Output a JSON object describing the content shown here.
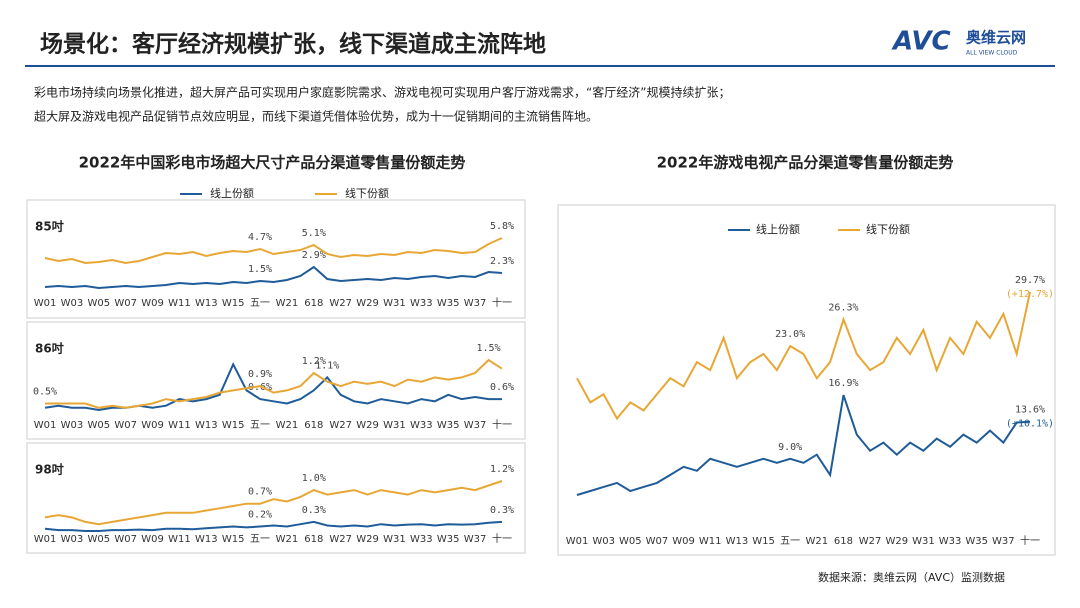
{
  "header": {
    "title": "场景化：客厅经济规模扩张，线下渠道成主流阵地",
    "logo": "AVC",
    "logo_name": "奥维云网",
    "logo_sub": "ALL VIEW CLOUD"
  },
  "paragraph": [
    "彩电市场持续向场景化推进，超大屏产品可实现用户家庭影院需求、游戏电视可实现用户客厅游戏需求，“客厅经济”规模持续扩张；",
    "超大屏及游戏电视产品促销节点效应明显，而线下渠道凭借体验优势，成为十一促销期间的主流销售阵地。"
  ],
  "source": "数据来源：奥维云网（AVC）监测数据",
  "chart_data": [
    {
      "type": "line",
      "title": "2022年中国彩电市场超大尺寸产品分渠道零售量份额走势",
      "legend": [
        {
          "name": "线上份额",
          "color": "#1f5c99"
        },
        {
          "name": "线下份额",
          "color": "#e8a735"
        }
      ],
      "categories": [
        "W01",
        null,
        "W03",
        null,
        "W05",
        null,
        "W07",
        null,
        "W09",
        null,
        "W11",
        null,
        "W13",
        null,
        "W15",
        null,
        "五一",
        null,
        "W21",
        null,
        "618",
        null,
        "W27",
        null,
        "W29",
        null,
        "W31",
        null,
        "W33",
        null,
        "W35",
        null,
        "W37",
        null,
        "十一"
      ],
      "panels": [
        {
          "label": "85吋",
          "series": [
            {
              "values": [
                0.9,
                1.0,
                0.9,
                1.0,
                0.8,
                0.9,
                1.0,
                0.9,
                1.0,
                1.1,
                1.3,
                1.2,
                1.3,
                1.2,
                1.4,
                1.3,
                1.5,
                1.4,
                1.6,
                2.0,
                2.9,
                1.7,
                1.5,
                1.6,
                1.7,
                1.6,
                1.8,
                1.7,
                1.9,
                2.0,
                1.8,
                2.0,
                1.9,
                2.4,
                2.3
              ],
              "value_labels": [
                null,
                null,
                null,
                null,
                null,
                null,
                null,
                null,
                null,
                null,
                null,
                null,
                null,
                null,
                null,
                null,
                "1.5%",
                null,
                null,
                null,
                "2.9%",
                null,
                null,
                null,
                null,
                null,
                null,
                null,
                null,
                null,
                null,
                null,
                null,
                null,
                "2.3%"
              ]
            },
            {
              "values": [
                3.8,
                3.5,
                3.7,
                3.3,
                3.4,
                3.6,
                3.3,
                3.5,
                3.9,
                4.3,
                4.2,
                4.4,
                4.0,
                4.3,
                4.5,
                4.4,
                4.7,
                4.2,
                4.4,
                4.6,
                5.1,
                4.2,
                3.9,
                4.1,
                4.0,
                4.2,
                4.1,
                4.4,
                4.3,
                4.6,
                4.5,
                4.3,
                4.4,
                5.2,
                5.8
              ],
              "value_labels": [
                null,
                null,
                null,
                null,
                null,
                null,
                null,
                null,
                null,
                null,
                null,
                null,
                null,
                null,
                null,
                null,
                "4.7%",
                null,
                null,
                null,
                "5.1%",
                null,
                null,
                null,
                null,
                null,
                null,
                null,
                null,
                null,
                null,
                null,
                null,
                null,
                "5.8%"
              ]
            }
          ]
        },
        {
          "label": "86吋",
          "series": [
            {
              "values": [
                0.4,
                0.45,
                0.4,
                0.4,
                0.35,
                0.4,
                0.4,
                0.45,
                0.4,
                0.45,
                0.6,
                0.55,
                0.6,
                0.7,
                1.4,
                0.8,
                0.6,
                0.55,
                0.5,
                0.6,
                0.8,
                1.1,
                0.7,
                0.55,
                0.5,
                0.6,
                0.55,
                0.5,
                0.6,
                0.55,
                0.7,
                0.6,
                0.65,
                0.6,
                0.6
              ],
              "value_labels": [
                null,
                null,
                null,
                null,
                null,
                null,
                null,
                null,
                null,
                null,
                null,
                null,
                null,
                null,
                null,
                null,
                "0.6%",
                null,
                null,
                null,
                null,
                "1.1%",
                null,
                null,
                null,
                null,
                null,
                null,
                null,
                null,
                null,
                null,
                null,
                null,
                "0.6%"
              ]
            },
            {
              "values": [
                0.5,
                0.5,
                0.5,
                0.5,
                0.4,
                0.45,
                0.4,
                0.45,
                0.5,
                0.6,
                0.55,
                0.6,
                0.65,
                0.75,
                0.8,
                0.85,
                0.9,
                0.75,
                0.8,
                0.9,
                1.2,
                1.0,
                0.9,
                1.0,
                0.95,
                1.0,
                0.9,
                1.05,
                1.0,
                1.1,
                1.05,
                1.1,
                1.2,
                1.5,
                1.3
              ],
              "value_labels": [
                "0.5%",
                null,
                null,
                null,
                null,
                null,
                null,
                null,
                null,
                null,
                null,
                null,
                null,
                null,
                null,
                null,
                "0.9%",
                null,
                null,
                null,
                "1.2%",
                null,
                null,
                null,
                null,
                null,
                null,
                null,
                null,
                null,
                null,
                null,
                null,
                "1.5%",
                null
              ]
            }
          ]
        },
        {
          "label": "98吋",
          "series": [
            {
              "values": [
                0.15,
                0.12,
                0.12,
                0.1,
                0.1,
                0.12,
                0.12,
                0.13,
                0.12,
                0.15,
                0.15,
                0.14,
                0.16,
                0.18,
                0.2,
                0.18,
                0.2,
                0.22,
                0.2,
                0.25,
                0.3,
                0.22,
                0.2,
                0.22,
                0.2,
                0.25,
                0.22,
                0.24,
                0.25,
                0.22,
                0.25,
                0.24,
                0.25,
                0.28,
                0.3
              ],
              "value_labels": [
                null,
                null,
                null,
                null,
                null,
                null,
                null,
                null,
                null,
                null,
                null,
                null,
                null,
                null,
                null,
                null,
                "0.2%",
                null,
                null,
                null,
                "0.3%",
                null,
                null,
                null,
                null,
                null,
                null,
                null,
                null,
                null,
                null,
                null,
                null,
                null,
                "0.3%"
              ]
            },
            {
              "values": [
                0.4,
                0.45,
                0.4,
                0.3,
                0.25,
                0.3,
                0.35,
                0.4,
                0.45,
                0.5,
                0.5,
                0.5,
                0.55,
                0.6,
                0.65,
                0.7,
                0.7,
                0.8,
                0.75,
                0.85,
                1.0,
                0.9,
                0.95,
                1.0,
                0.9,
                1.0,
                0.95,
                0.9,
                1.0,
                0.95,
                1.0,
                1.05,
                1.0,
                1.1,
                1.2
              ],
              "value_labels": [
                null,
                null,
                null,
                null,
                null,
                null,
                null,
                null,
                null,
                null,
                null,
                null,
                null,
                null,
                null,
                null,
                "0.7%",
                null,
                null,
                null,
                "1.0%",
                null,
                null,
                null,
                null,
                null,
                null,
                null,
                null,
                null,
                null,
                null,
                null,
                null,
                "1.2%"
              ]
            }
          ]
        }
      ]
    },
    {
      "type": "line",
      "title": "2022年游戏电视产品分渠道零售量份额走势",
      "categories": [
        "W01",
        null,
        "W03",
        null,
        "W05",
        null,
        "W07",
        null,
        "W09",
        null,
        "W11",
        null,
        "W13",
        null,
        "W15",
        null,
        "五一",
        null,
        "W21",
        null,
        "618",
        null,
        "W27",
        null,
        "W29",
        null,
        "W31",
        null,
        "W33",
        null,
        "W35",
        null,
        "W37",
        null,
        "十一"
      ],
      "series": [
        {
          "name": "线上份额",
          "color": "#1f5c99",
          "values": [
            4.5,
            5,
            5.5,
            6,
            5,
            5.5,
            6,
            7,
            8,
            7.5,
            9,
            8.5,
            8,
            8.5,
            9,
            8.5,
            9.0,
            8.5,
            9.5,
            7,
            16.9,
            12,
            10,
            11,
            9.5,
            11,
            10,
            11.5,
            10.5,
            12,
            11,
            12.5,
            11,
            13.5,
            13.6
          ],
          "value_labels": [
            null,
            null,
            null,
            null,
            null,
            null,
            null,
            null,
            null,
            null,
            null,
            null,
            null,
            null,
            null,
            null,
            "9.0%",
            null,
            null,
            null,
            "16.9%",
            null,
            null,
            null,
            null,
            null,
            null,
            null,
            null,
            null,
            null,
            null,
            null,
            null,
            "13.6%"
          ],
          "change_label": "(+10.1%)"
        },
        {
          "name": "线下份额",
          "color": "#e8a735",
          "values": [
            19,
            16,
            17,
            14,
            16,
            15,
            17,
            19,
            18,
            21,
            20,
            24,
            19,
            21,
            22,
            20,
            23.0,
            22,
            19,
            21,
            26.3,
            22,
            20,
            21,
            24,
            22,
            25,
            20,
            24,
            22,
            26,
            24,
            27,
            22,
            29.7
          ],
          "value_labels": [
            null,
            null,
            null,
            null,
            null,
            null,
            null,
            null,
            null,
            null,
            null,
            null,
            null,
            null,
            null,
            null,
            "23.0%",
            null,
            null,
            null,
            "26.3%",
            null,
            null,
            null,
            null,
            null,
            null,
            null,
            null,
            null,
            null,
            null,
            null,
            null,
            "29.7%"
          ],
          "change_label": "(+12.7%)"
        }
      ]
    }
  ]
}
